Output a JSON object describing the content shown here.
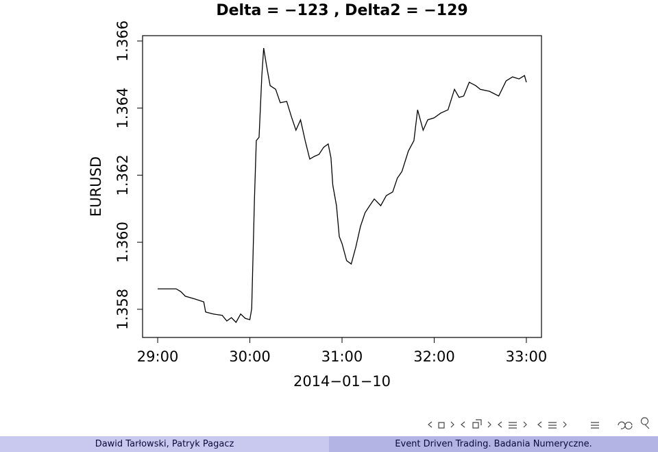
{
  "chart_data": {
    "type": "line",
    "title": "Delta = −123 , Delta2 = −129",
    "ylabel": "EURUSD",
    "xlabel": "2014−01−10",
    "color": "#000000",
    "x": [
      29.0,
      29.2,
      29.25,
      29.3,
      29.4,
      29.5,
      29.52,
      29.6,
      29.7,
      29.75,
      29.8,
      29.85,
      29.9,
      29.95,
      30.0,
      30.02,
      30.05,
      30.07,
      30.1,
      30.13,
      30.15,
      30.18,
      30.22,
      30.28,
      30.33,
      30.4,
      30.45,
      30.5,
      30.55,
      30.6,
      30.65,
      30.7,
      30.75,
      30.8,
      30.85,
      30.88,
      30.9,
      30.94,
      30.97,
      31.0,
      31.05,
      31.1,
      31.15,
      31.2,
      31.25,
      31.3,
      31.35,
      31.42,
      31.48,
      31.55,
      31.6,
      31.65,
      31.72,
      31.78,
      31.82,
      31.88,
      31.93,
      32.0,
      32.07,
      32.15,
      32.22,
      32.27,
      32.32,
      32.38,
      32.45,
      32.5,
      32.6,
      32.7,
      32.78,
      32.85,
      32.92,
      32.98,
      33.0
    ],
    "values": [
      1.35861,
      1.35861,
      1.35853,
      1.35839,
      1.35831,
      1.35822,
      1.35792,
      1.35786,
      1.35782,
      1.35765,
      1.35775,
      1.35761,
      1.35786,
      1.35773,
      1.35769,
      1.35802,
      1.36129,
      1.36303,
      1.36313,
      1.36497,
      1.36579,
      1.36528,
      1.36467,
      1.36456,
      1.36416,
      1.3642,
      1.36375,
      1.36334,
      1.36365,
      1.36303,
      1.36248,
      1.36256,
      1.36262,
      1.36283,
      1.36293,
      1.36252,
      1.3617,
      1.36109,
      1.36017,
      1.35996,
      1.35945,
      1.35935,
      1.35986,
      1.36047,
      1.36088,
      1.36109,
      1.36129,
      1.36109,
      1.36139,
      1.3615,
      1.36191,
      1.36211,
      1.36272,
      1.36303,
      1.36395,
      1.36334,
      1.36365,
      1.36371,
      1.36385,
      1.36395,
      1.36456,
      1.36432,
      1.36436,
      1.36477,
      1.36467,
      1.36456,
      1.3645,
      1.36436,
      1.36481,
      1.36493,
      1.36487,
      1.36497,
      1.36477
    ],
    "xlim": [
      28.836,
      33.164
    ],
    "xticks": [
      {
        "value": 29,
        "label": "29:00"
      },
      {
        "value": 30,
        "label": "30:00"
      },
      {
        "value": 31,
        "label": "31:00"
      },
      {
        "value": 32,
        "label": "32:00"
      },
      {
        "value": 33,
        "label": "33:00"
      }
    ],
    "ylim": [
      1.35716,
      1.36616
    ],
    "yticks": [
      1.358,
      {
        "value": 1.36,
        "label": "1.360"
      },
      1.362,
      1.364,
      1.366
    ]
  },
  "footer": {
    "authors": "Dawid Tarłowski, Patryk Pagacz",
    "title": "Event Driven Trading. Badania Numeryczne."
  }
}
